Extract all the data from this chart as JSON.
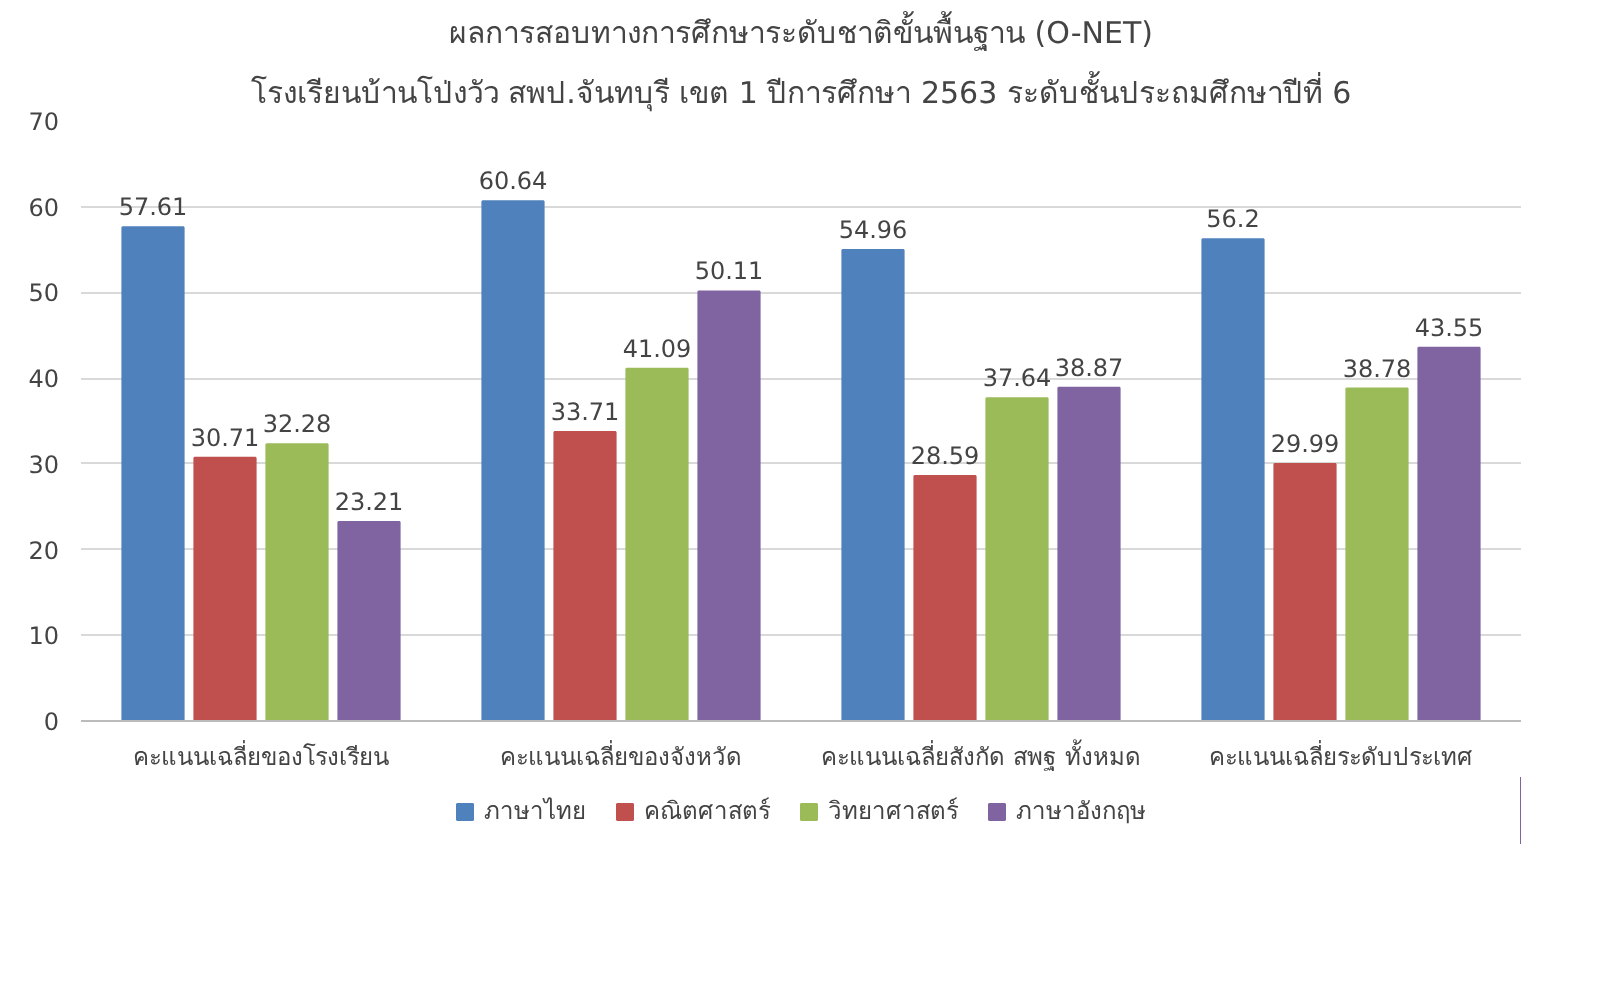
{
  "chart_data": {
    "type": "bar",
    "title": "ผลการสอบทางการศึกษาระดับชาติขั้นพื้นฐาน (O-NET)",
    "subtitle": "โรงเรียนบ้านโป่งวัว สพป.จันทบุรี เขต 1 ปีการศึกษา 2563 ระดับชั้นประถมศึกษาปีที่ 6",
    "categories": [
      "คะแนนเฉลี่ยของโรงเรียน",
      "คะแนนเฉลี่ยของจังหวัด",
      "คะแนนเฉลี่ยสังกัด สพฐ ทั้งหมด",
      "คะแนนเฉลี่ยระดับประเทศ"
    ],
    "series": [
      {
        "name": "ภาษาไทย",
        "color": "#4f81bd",
        "values": [
          57.61,
          60.64,
          54.96,
          56.2
        ]
      },
      {
        "name": "คณิตศาสตร์",
        "color": "#c0504d",
        "values": [
          30.71,
          33.71,
          28.59,
          29.99
        ]
      },
      {
        "name": "วิทยาศาสตร์",
        "color": "#9bbb59",
        "values": [
          32.28,
          41.09,
          37.64,
          38.78
        ]
      },
      {
        "name": "ภาษาอังกฤษ",
        "color": "#8064a2",
        "values": [
          23.21,
          50.11,
          38.87,
          43.55
        ]
      }
    ],
    "ylim": [
      0,
      70
    ],
    "yticks": [
      0,
      10,
      20,
      30,
      40,
      50,
      60,
      70
    ],
    "grid": "y",
    "legend": "bottom",
    "data_labels": true
  }
}
